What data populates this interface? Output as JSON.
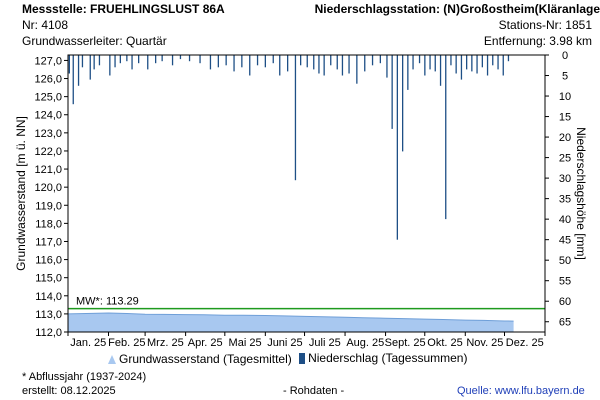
{
  "header": {
    "left_title": "Messstelle: FRUEHLINGSLUST 86A",
    "left_nr": "Nr: 4108",
    "left_aquifer": "Grundwasserleiter: Quartär",
    "right_title": "Niederschlagsstation: (N)Großostheim(Kläranlage",
    "right_nr": "Stations-Nr: 1851",
    "right_distance": "Entfernung: 3.98 km"
  },
  "chart_data": {
    "type": "area",
    "ylabel": "Grundwasserstand [m ü. NN]",
    "y2label": "Niederschlagshöhe [mm]",
    "ylim": [
      112.0,
      127.3
    ],
    "y_ticks": [
      "112,0",
      "113,0",
      "114,0",
      "115,0",
      "116,0",
      "117,0",
      "118,0",
      "119,0",
      "120,0",
      "121,0",
      "122,0",
      "123,0",
      "124,0",
      "125,0",
      "126,0",
      "127,0"
    ],
    "y2lim": [
      0,
      67.5
    ],
    "y2_ticks": [
      "0",
      "5",
      "10",
      "15",
      "20",
      "25",
      "30",
      "35",
      "40",
      "45",
      "50",
      "55",
      "60",
      "65"
    ],
    "x_ticks": [
      "Jan. 25",
      "Feb. 25",
      "Mrz. 25",
      "Apr. 25",
      "Mai 25",
      "Juni 25",
      "Juli 25",
      "Aug. 25",
      "Sept. 25",
      "Okt. 25",
      "Nov. 25",
      "Dez. 25"
    ],
    "mw_label": "MW*: 113.29",
    "mw_value": 113.29,
    "groundwater": {
      "name": "Grundwasserstand (Tagesmittel)",
      "color": "#a8c8f0",
      "x": [
        "2025-01-01",
        "2025-01-15",
        "2025-02-01",
        "2025-02-15",
        "2025-03-01",
        "2025-03-15",
        "2025-04-01",
        "2025-04-15",
        "2025-05-01",
        "2025-05-15",
        "2025-06-01",
        "2025-06-15",
        "2025-07-01",
        "2025-07-15",
        "2025-08-01",
        "2025-08-15",
        "2025-09-01",
        "2025-09-15",
        "2025-10-01",
        "2025-10-15",
        "2025-11-01",
        "2025-11-15",
        "2025-12-01",
        "2025-12-08"
      ],
      "values": [
        113.0,
        113.02,
        113.05,
        113.02,
        112.98,
        112.97,
        112.96,
        112.95,
        112.93,
        112.93,
        112.91,
        112.89,
        112.86,
        112.84,
        112.81,
        112.79,
        112.76,
        112.74,
        112.71,
        112.69,
        112.66,
        112.64,
        112.61,
        112.6
      ]
    },
    "precipitation": {
      "name": "Niederschlag (Tagessummen)",
      "color": "#1e4f86",
      "x": [
        "2025-01-02",
        "2025-01-05",
        "2025-01-09",
        "2025-01-12",
        "2025-01-18",
        "2025-01-21",
        "2025-01-25",
        "2025-02-02",
        "2025-02-06",
        "2025-02-10",
        "2025-02-15",
        "2025-02-19",
        "2025-02-24",
        "2025-03-03",
        "2025-03-09",
        "2025-03-14",
        "2025-03-22",
        "2025-03-28",
        "2025-04-04",
        "2025-04-12",
        "2025-04-20",
        "2025-04-26",
        "2025-05-02",
        "2025-05-08",
        "2025-05-14",
        "2025-05-20",
        "2025-05-26",
        "2025-06-01",
        "2025-06-07",
        "2025-06-12",
        "2025-06-18",
        "2025-06-24",
        "2025-06-28",
        "2025-07-03",
        "2025-07-08",
        "2025-07-12",
        "2025-07-16",
        "2025-07-21",
        "2025-07-26",
        "2025-07-30",
        "2025-08-04",
        "2025-08-10",
        "2025-08-16",
        "2025-08-22",
        "2025-08-28",
        "2025-09-02",
        "2025-09-06",
        "2025-09-10",
        "2025-09-14",
        "2025-09-18",
        "2025-09-22",
        "2025-09-27",
        "2025-10-01",
        "2025-10-05",
        "2025-10-09",
        "2025-10-13",
        "2025-10-17",
        "2025-10-21",
        "2025-10-25",
        "2025-10-29",
        "2025-11-02",
        "2025-11-06",
        "2025-11-10",
        "2025-11-14",
        "2025-11-18",
        "2025-11-22",
        "2025-11-26",
        "2025-11-30",
        "2025-12-04"
      ],
      "values": [
        4.5,
        12,
        7.5,
        3.0,
        6.0,
        3.5,
        2.5,
        5.0,
        3.0,
        2.0,
        1.5,
        3.5,
        2.0,
        3.5,
        2.0,
        1.5,
        2.5,
        1.0,
        1.5,
        2.0,
        3.5,
        3.0,
        2.5,
        4.0,
        3.0,
        5.0,
        2.5,
        3.0,
        2.0,
        5.0,
        4.0,
        30.5,
        2.5,
        3.0,
        3.5,
        4.5,
        5.0,
        2.5,
        3.5,
        5.0,
        4.5,
        7.0,
        4.0,
        2.5,
        2.0,
        5.5,
        18.0,
        45.0,
        23.5,
        8.5,
        3.5,
        2.0,
        5.0,
        3.5,
        4.0,
        7.5,
        40.0,
        2.5,
        4.5,
        6.0,
        3.5,
        4.0,
        4.5,
        3.0,
        5.0,
        2.5,
        3.5,
        5.0,
        1.5
      ]
    }
  },
  "footer": {
    "note": "* Abflussjahr (1937-2024)",
    "created": "erstellt:  08.12.2025",
    "rawdata": "- Rohdaten -",
    "source_label": "Quelle: ",
    "source_url": "www.lfu.bayern.de"
  }
}
